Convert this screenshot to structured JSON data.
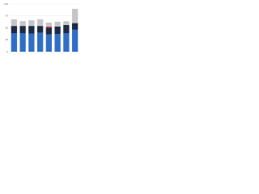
{
  "chart_data": {
    "type": "stacked_bar",
    "categories": [
      null,
      null,
      null,
      null,
      null,
      null,
      null,
      null
    ],
    "series": [
      {
        "color": "#2f6fc6",
        "values": [
          39,
          39,
          38,
          40,
          36,
          37,
          39,
          46
        ]
      },
      {
        "color": "#1c2b45",
        "values": [
          15,
          15,
          16,
          14,
          14,
          16,
          17,
          14
        ]
      },
      {
        "color": "#d8373c",
        "values": [
          0,
          0,
          0,
          0,
          3,
          0,
          0,
          0
        ]
      },
      {
        "color": "#c4c6c9",
        "values": [
          14,
          10,
          12,
          14,
          8,
          10,
          8,
          30
        ]
      }
    ],
    "ylim": [
      0,
      100
    ],
    "yticks": [
      0,
      25,
      50,
      75,
      100
    ],
    "grid": true
  }
}
